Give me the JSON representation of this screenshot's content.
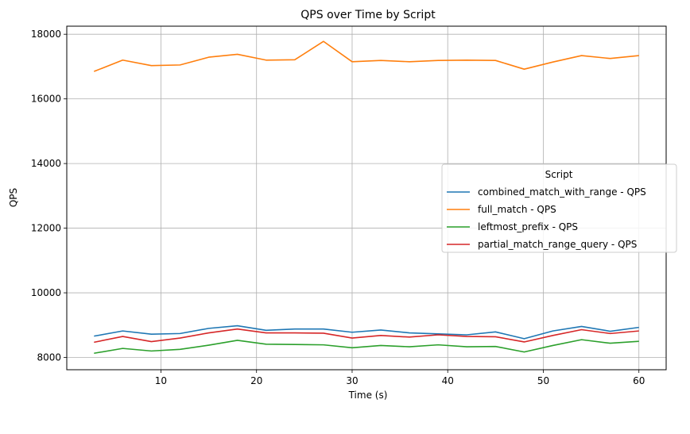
{
  "chart_data": {
    "type": "line",
    "title": "QPS over Time by Script",
    "xlabel": "Time (s)",
    "ylabel": "QPS",
    "xlim": [
      0.15,
      62.85
    ],
    "ylim": [
      7620,
      18250
    ],
    "xticks": [
      10,
      20,
      30,
      40,
      50,
      60
    ],
    "yticks": [
      8000,
      10000,
      12000,
      14000,
      16000,
      18000
    ],
    "grid": true,
    "legend": {
      "title": "Script",
      "placement": "center-right"
    },
    "x": [
      3,
      6,
      9,
      12,
      15,
      18,
      21,
      24,
      27,
      30,
      33,
      36,
      39,
      42,
      45,
      48,
      51,
      54,
      57,
      60
    ],
    "series": [
      {
        "name": "combined_match_with_range - QPS",
        "color": "#1f77b4",
        "values": [
          8660,
          8820,
          8720,
          8740,
          8900,
          8980,
          8840,
          8880,
          8880,
          8780,
          8850,
          8760,
          8730,
          8700,
          8790,
          8580,
          8820,
          8960,
          8810,
          8930
        ]
      },
      {
        "name": "full_match - QPS",
        "color": "#ff7f0e",
        "values": [
          16850,
          17200,
          17030,
          17050,
          17290,
          17380,
          17200,
          17210,
          17780,
          17150,
          17190,
          17150,
          17190,
          17200,
          17190,
          16920,
          17140,
          17340,
          17250,
          17340
        ]
      },
      {
        "name": "leftmost_prefix - QPS",
        "color": "#2ca02c",
        "values": [
          8130,
          8280,
          8200,
          8250,
          8380,
          8530,
          8410,
          8400,
          8390,
          8300,
          8370,
          8330,
          8390,
          8330,
          8340,
          8170,
          8370,
          8550,
          8440,
          8500
        ]
      },
      {
        "name": "partial_match_range_query - QPS",
        "color": "#d62728",
        "values": [
          8470,
          8650,
          8490,
          8600,
          8760,
          8880,
          8760,
          8760,
          8750,
          8600,
          8680,
          8630,
          8700,
          8650,
          8640,
          8480,
          8680,
          8860,
          8740,
          8820
        ]
      }
    ]
  }
}
